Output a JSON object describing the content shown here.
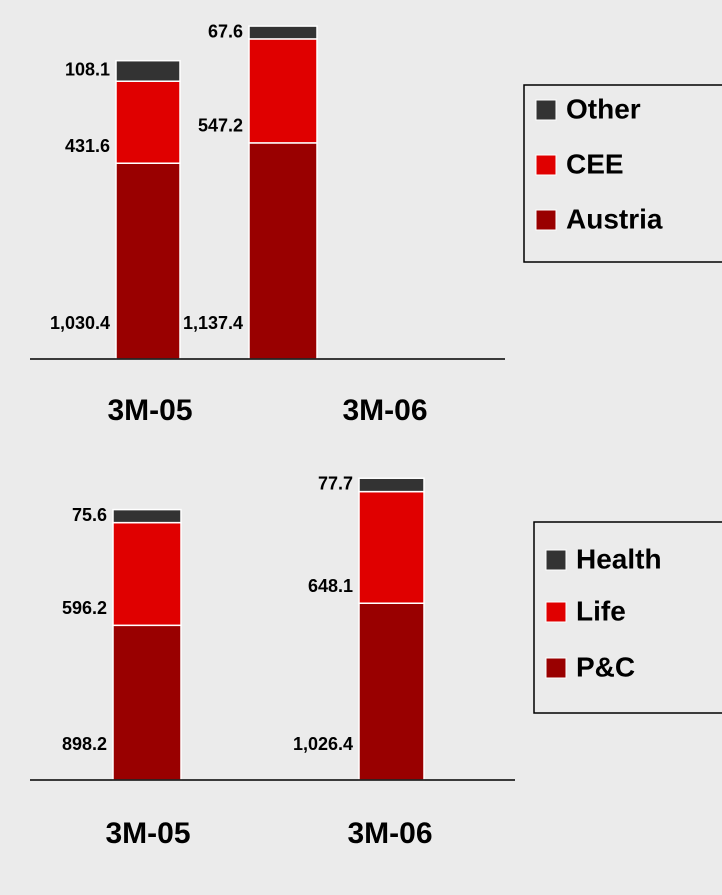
{
  "chart_data": [
    {
      "type": "stacked-bar",
      "categories": [
        "3M-05",
        "3M-06"
      ],
      "ylim": [
        0,
        1800
      ],
      "series": [
        {
          "name": "Austria",
          "color": "#990000",
          "values": [
            1030.4,
            1137.4
          ],
          "value_labels": [
            "1,030.4",
            "1,137.4"
          ]
        },
        {
          "name": "CEE",
          "color": "#e00000",
          "values": [
            431.6,
            547.2
          ],
          "value_labels": [
            "431.6",
            "547.2"
          ]
        },
        {
          "name": "Other",
          "color": "#333333",
          "values": [
            108.1,
            67.6
          ],
          "value_labels": [
            "108.1",
            "67.6"
          ]
        }
      ]
    },
    {
      "type": "stacked-bar",
      "categories": [
        "3M-05",
        "3M-06"
      ],
      "ylim": [
        0,
        1800
      ],
      "series": [
        {
          "name": "P&C",
          "color": "#990000",
          "values": [
            898.2,
            1026.4
          ],
          "value_labels": [
            "898.2",
            "1,026.4"
          ]
        },
        {
          "name": "Life",
          "color": "#e00000",
          "values": [
            596.2,
            648.1
          ],
          "value_labels": [
            "596.2",
            "648.1"
          ]
        },
        {
          "name": "Health",
          "color": "#333333",
          "values": [
            75.6,
            77.7
          ],
          "value_labels": [
            "75.6",
            "77.7"
          ]
        }
      ]
    }
  ]
}
